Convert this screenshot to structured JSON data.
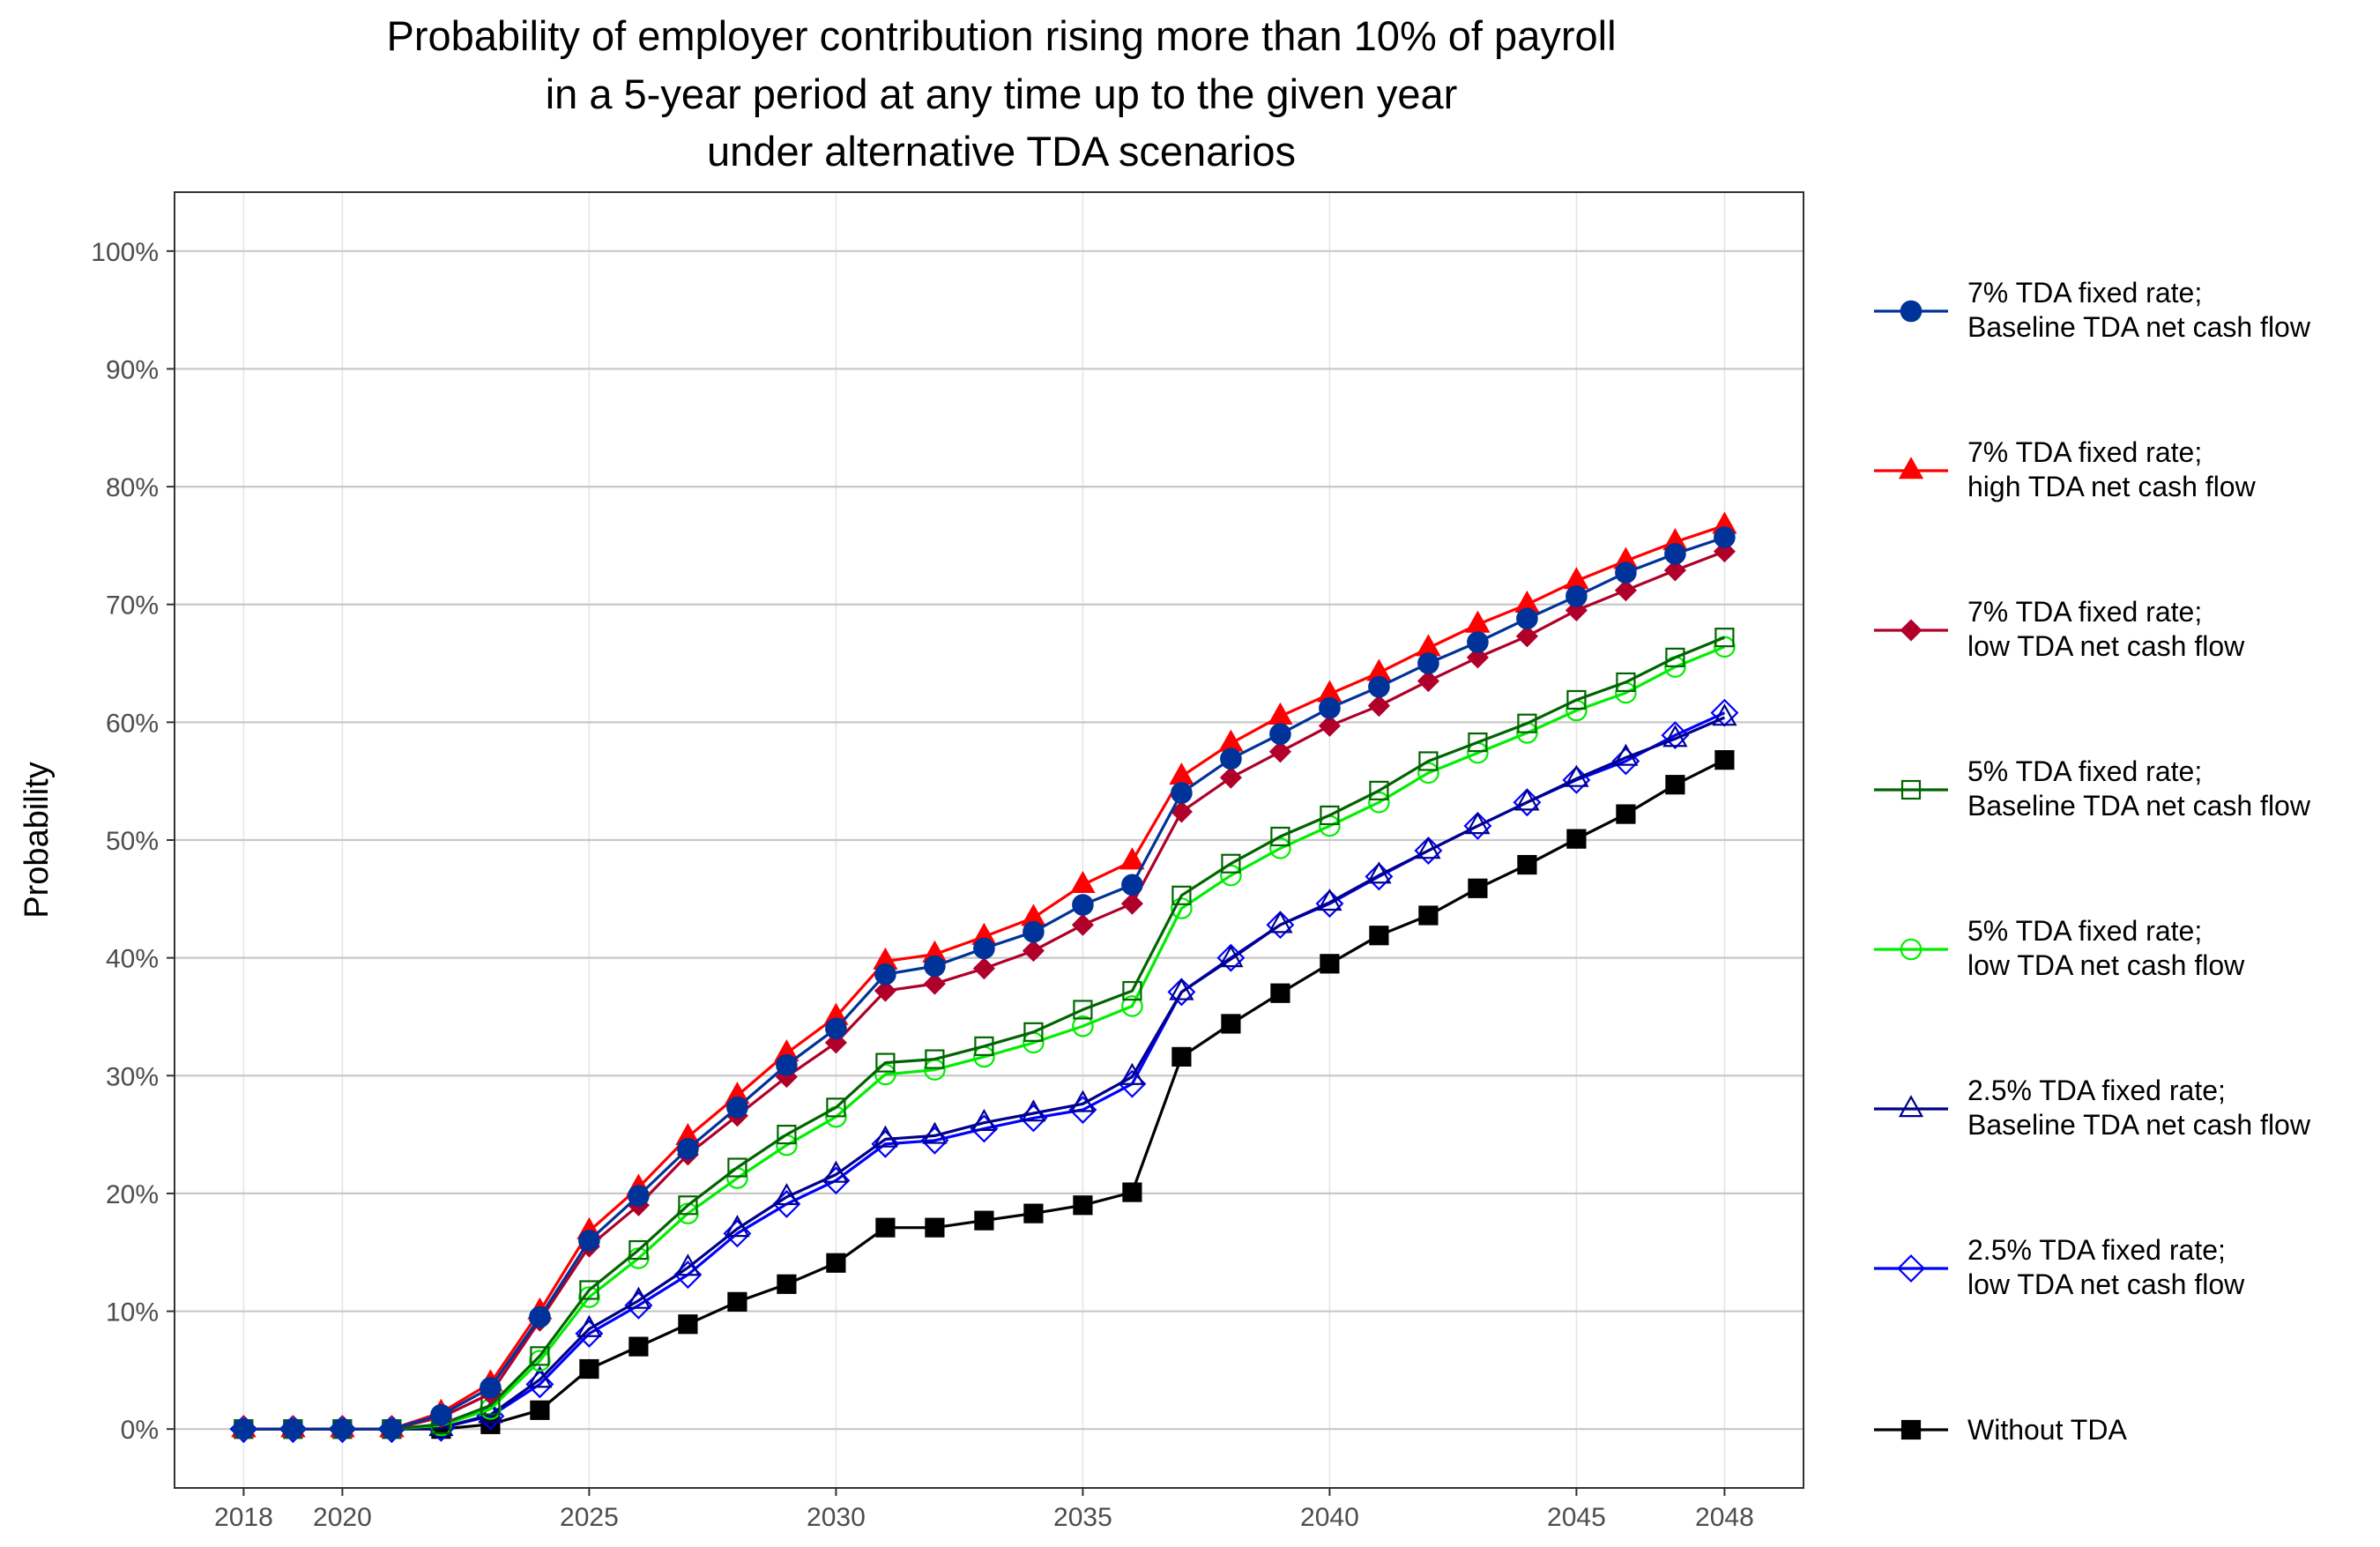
{
  "chart_data": {
    "type": "line",
    "title": [
      "Probability of employer contribution rising more than 10% of payroll",
      "in a 5-year period at any time up to the given year",
      "under alternative TDA scenarios"
    ],
    "xlabel": "",
    "ylabel": "Probability",
    "xlim": [
      2016.6,
      2049.6
    ],
    "ylim": [
      -0.05,
      1.05
    ],
    "x_ticks": [
      2018,
      2020,
      2025,
      2030,
      2035,
      2040,
      2045,
      2048
    ],
    "y_ticks": [
      0,
      0.1,
      0.2,
      0.3,
      0.4,
      0.5,
      0.6,
      0.7,
      0.8,
      0.9,
      1.0
    ],
    "y_tick_labels": [
      "0%",
      "10%",
      "20%",
      "30%",
      "40%",
      "50%",
      "60%",
      "70%",
      "80%",
      "90%",
      "100%"
    ],
    "grid": true,
    "legend_position": "right",
    "x": [
      2018,
      2019,
      2020,
      2021,
      2022,
      2023,
      2024,
      2025,
      2026,
      2027,
      2028,
      2029,
      2030,
      2031,
      2032,
      2033,
      2034,
      2035,
      2036,
      2037,
      2038,
      2039,
      2040,
      2041,
      2042,
      2043,
      2044,
      2045,
      2046,
      2047,
      2048
    ],
    "series": [
      {
        "name": [
          "7% TDA fixed rate;",
          "Baseline TDA net cash flow"
        ],
        "color": "#003399",
        "marker": "circle-filled",
        "values": [
          0,
          0,
          0,
          0,
          0.012,
          0.035,
          0.095,
          0.16,
          0.198,
          0.238,
          0.273,
          0.309,
          0.34,
          0.386,
          0.393,
          0.408,
          0.422,
          0.445,
          0.462,
          0.54,
          0.569,
          0.59,
          0.612,
          0.63,
          0.65,
          0.668,
          0.688,
          0.707,
          0.727,
          0.743,
          0.757
        ]
      },
      {
        "name": [
          "7% TDA fixed rate;",
          "high TDA net cash flow"
        ],
        "color": "#ff0000",
        "marker": "triangle-filled",
        "values": [
          0,
          0,
          0,
          0,
          0.014,
          0.039,
          0.1,
          0.168,
          0.205,
          0.248,
          0.283,
          0.319,
          0.35,
          0.397,
          0.403,
          0.418,
          0.434,
          0.462,
          0.482,
          0.554,
          0.582,
          0.605,
          0.624,
          0.642,
          0.663,
          0.683,
          0.7,
          0.72,
          0.737,
          0.753,
          0.767
        ]
      },
      {
        "name": [
          "7% TDA fixed rate;",
          "low  TDA net cash flow"
        ],
        "color": "#b0002a",
        "marker": "diamond-filled",
        "values": [
          0,
          0,
          0,
          0,
          0.01,
          0.03,
          0.092,
          0.155,
          0.19,
          0.233,
          0.266,
          0.299,
          0.328,
          0.372,
          0.378,
          0.391,
          0.406,
          0.428,
          0.446,
          0.524,
          0.553,
          0.575,
          0.597,
          0.614,
          0.635,
          0.655,
          0.673,
          0.695,
          0.712,
          0.729,
          0.745
        ]
      },
      {
        "name": [
          "5% TDA fixed rate;",
          "Baseline TDA net cash flow"
        ],
        "color": "#006400",
        "marker": "square-open",
        "values": [
          0,
          0,
          0,
          0,
          0.004,
          0.02,
          0.062,
          0.118,
          0.152,
          0.19,
          0.222,
          0.25,
          0.273,
          0.311,
          0.314,
          0.325,
          0.337,
          0.356,
          0.372,
          0.453,
          0.48,
          0.503,
          0.521,
          0.542,
          0.567,
          0.583,
          0.599,
          0.619,
          0.634,
          0.655,
          0.672
        ]
      },
      {
        "name": [
          "5% TDA fixed rate;",
          "low TDA net cash flow"
        ],
        "color": "#00ee00",
        "marker": "circle-open",
        "values": [
          0,
          0,
          0,
          0,
          0.003,
          0.017,
          0.058,
          0.112,
          0.145,
          0.183,
          0.213,
          0.241,
          0.265,
          0.301,
          0.305,
          0.316,
          0.328,
          0.342,
          0.359,
          0.442,
          0.47,
          0.493,
          0.512,
          0.532,
          0.557,
          0.574,
          0.591,
          0.61,
          0.625,
          0.647,
          0.664
        ]
      },
      {
        "name": [
          "2.5% TDA fixed rate;",
          "Baseline TDA net cash flow"
        ],
        "color": "#00008b",
        "marker": "triangle-open",
        "values": [
          0,
          0,
          0,
          0,
          0.001,
          0.012,
          0.042,
          0.085,
          0.109,
          0.137,
          0.17,
          0.197,
          0.216,
          0.246,
          0.249,
          0.26,
          0.268,
          0.276,
          0.299,
          0.371,
          0.399,
          0.428,
          0.447,
          0.47,
          0.491,
          0.512,
          0.532,
          0.552,
          0.57,
          0.586,
          0.604
        ]
      },
      {
        "name": [
          "2.5% TDA fixed rate;",
          "low TDA net cash flow"
        ],
        "color": "#0000ff",
        "marker": "diamond-open",
        "values": [
          0,
          0,
          0,
          0,
          0.001,
          0.011,
          0.038,
          0.081,
          0.105,
          0.131,
          0.166,
          0.191,
          0.211,
          0.242,
          0.245,
          0.255,
          0.264,
          0.271,
          0.293,
          0.371,
          0.4,
          0.428,
          0.446,
          0.469,
          0.491,
          0.512,
          0.532,
          0.551,
          0.567,
          0.589,
          0.608
        ]
      },
      {
        "name": [
          "Without TDA"
        ],
        "color": "#000000",
        "marker": "square-filled",
        "values": [
          0,
          0,
          0,
          0,
          0,
          0.004,
          0.016,
          0.051,
          0.07,
          0.089,
          0.108,
          0.123,
          0.141,
          0.171,
          0.171,
          0.177,
          0.183,
          0.19,
          0.201,
          0.316,
          0.344,
          0.37,
          0.395,
          0.419,
          0.436,
          0.459,
          0.479,
          0.501,
          0.522,
          0.547,
          0.568
        ]
      }
    ]
  }
}
